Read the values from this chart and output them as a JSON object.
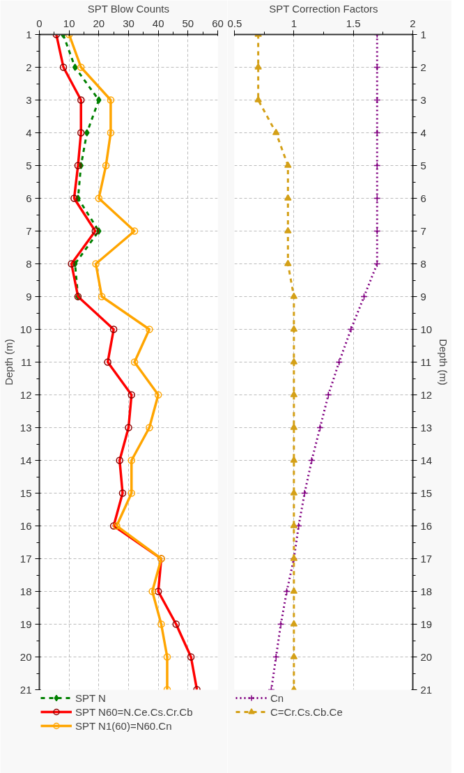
{
  "chart_data": [
    {
      "type": "line",
      "orientation": "horizontal",
      "xlabel": "SPT Blow Counts",
      "ylabel": "Depth (m)",
      "x": [
        1,
        2,
        3,
        4,
        5,
        6,
        7,
        8,
        9,
        10,
        11,
        12,
        13,
        14,
        15,
        16,
        17,
        18,
        19,
        20,
        21
      ],
      "xlim": [
        0,
        60
      ],
      "xticks": [
        0,
        10,
        20,
        30,
        40,
        50,
        60
      ],
      "ylim": [
        21,
        1
      ],
      "yticks": [
        1,
        2,
        3,
        4,
        5,
        6,
        7,
        8,
        9,
        10,
        11,
        12,
        13,
        14,
        15,
        16,
        17,
        18,
        19,
        20,
        21
      ],
      "grid": true,
      "legend": "bottom",
      "series": [
        {
          "name": "SPT N",
          "color": "#008000",
          "marker": "diamond",
          "line_style": "dashed",
          "values": [
            8,
            12,
            20,
            16,
            14,
            13,
            20,
            12,
            13,
            null,
            null,
            null,
            null,
            null,
            null,
            null,
            null,
            null,
            null,
            null,
            null
          ]
        },
        {
          "name": "SPT N60=N.Ce.Cs.Cr.Cb",
          "color": "#ff0000",
          "marker": "circle",
          "line_style": "solid",
          "values": [
            5.7,
            8.1,
            14,
            14,
            13,
            11.7,
            18.8,
            10.8,
            13,
            25,
            23,
            31,
            30,
            27,
            28,
            25,
            41,
            40,
            46,
            51,
            53
          ]
        },
        {
          "name": "SPT N1(60)=N60.Cn",
          "color": "#ffa500",
          "marker": "circle",
          "line_style": "solid",
          "values": [
            10,
            14,
            24,
            24,
            22.4,
            20,
            32,
            19,
            21,
            37,
            32,
            40,
            37,
            31,
            31,
            26,
            41,
            38,
            41,
            43,
            43
          ]
        }
      ]
    },
    {
      "type": "line",
      "orientation": "horizontal",
      "xlabel": "SPT Correction Factors",
      "ylabel": "Depth (m)",
      "x": [
        1,
        2,
        3,
        4,
        5,
        6,
        7,
        8,
        9,
        10,
        11,
        12,
        13,
        14,
        15,
        16,
        17,
        18,
        19,
        20,
        21
      ],
      "xlim": [
        0.5,
        2
      ],
      "xticks": [
        0.5,
        1,
        1.5,
        2
      ],
      "ylim": [
        21,
        1
      ],
      "yticks": [
        1,
        2,
        3,
        4,
        5,
        6,
        7,
        8,
        9,
        10,
        11,
        12,
        13,
        14,
        15,
        16,
        17,
        18,
        19,
        20,
        21
      ],
      "grid": true,
      "legend": "bottom",
      "series": [
        {
          "name": "Cn",
          "color": "#800080",
          "marker": "cross",
          "line_style": "dotted",
          "values": [
            1.7,
            1.7,
            1.7,
            1.7,
            1.7,
            1.7,
            1.7,
            1.7,
            1.59,
            1.48,
            1.38,
            1.29,
            1.22,
            1.15,
            1.09,
            1.04,
            1.0,
            0.94,
            0.89,
            0.85,
            0.81
          ]
        },
        {
          "name": "C=Cr.Cs.Cb.Ce",
          "color": "#d4a017",
          "marker": "triangle",
          "line_style": "dashed",
          "values": [
            0.7,
            0.7,
            0.7,
            0.85,
            0.95,
            0.95,
            0.95,
            0.95,
            1,
            1,
            1,
            1,
            1,
            1,
            1,
            1,
            1,
            1,
            1,
            1,
            1
          ]
        }
      ]
    }
  ]
}
